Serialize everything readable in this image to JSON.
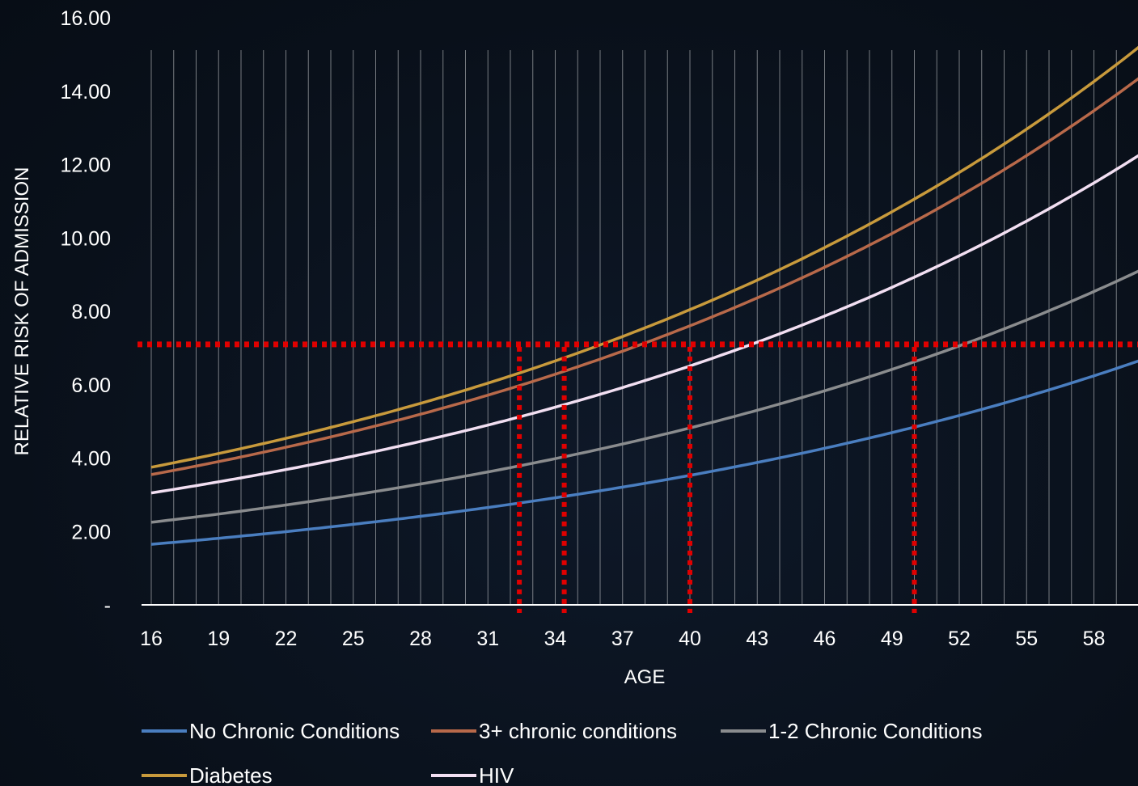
{
  "chart_data": {
    "type": "line",
    "xlabel": "AGE",
    "ylabel": "RELATIVE RISK OF ADMISSION",
    "x_min": 16,
    "x_max": 60,
    "ylim": [
      0,
      16
    ],
    "x_tick_labels": [
      "16",
      "19",
      "22",
      "25",
      "28",
      "31",
      "34",
      "37",
      "40",
      "43",
      "46",
      "49",
      "52",
      "55",
      "58"
    ],
    "y_ticks": [
      {
        "value": 0,
        "label": "-"
      },
      {
        "value": 2,
        "label": "2.00"
      },
      {
        "value": 4,
        "label": "4.00"
      },
      {
        "value": 6,
        "label": "6.00"
      },
      {
        "value": 8,
        "label": "8.00"
      },
      {
        "value": 10,
        "label": "10.00"
      },
      {
        "value": 12,
        "label": "12.00"
      },
      {
        "value": 14,
        "label": "14.00"
      },
      {
        "value": 16,
        "label": "16.00"
      }
    ],
    "vertical_gridlines": "every year",
    "series": [
      {
        "name": "No Chronic Conditions",
        "color": "#4a7ec0",
        "start": 1.65,
        "end": 6.65
      },
      {
        "name": "3+ chronic conditions",
        "color": "#b8694a",
        "start": 3.55,
        "end": 14.35
      },
      {
        "name": "1-2 Chronic Conditions",
        "color": "#8a8c8e",
        "start": 2.25,
        "end": 9.1
      },
      {
        "name": "Diabetes",
        "color": "#c89a3c",
        "start": 3.75,
        "end": 15.2
      },
      {
        "name": "HIV",
        "color": "#f2dff2",
        "start": 3.05,
        "end": 12.25
      }
    ],
    "reference_lines": {
      "color": "#e00000",
      "horizontal_y": 7.1,
      "vertical_x": [
        32.4,
        34.4,
        40.0,
        50.0
      ]
    },
    "legend_position": "bottom"
  }
}
